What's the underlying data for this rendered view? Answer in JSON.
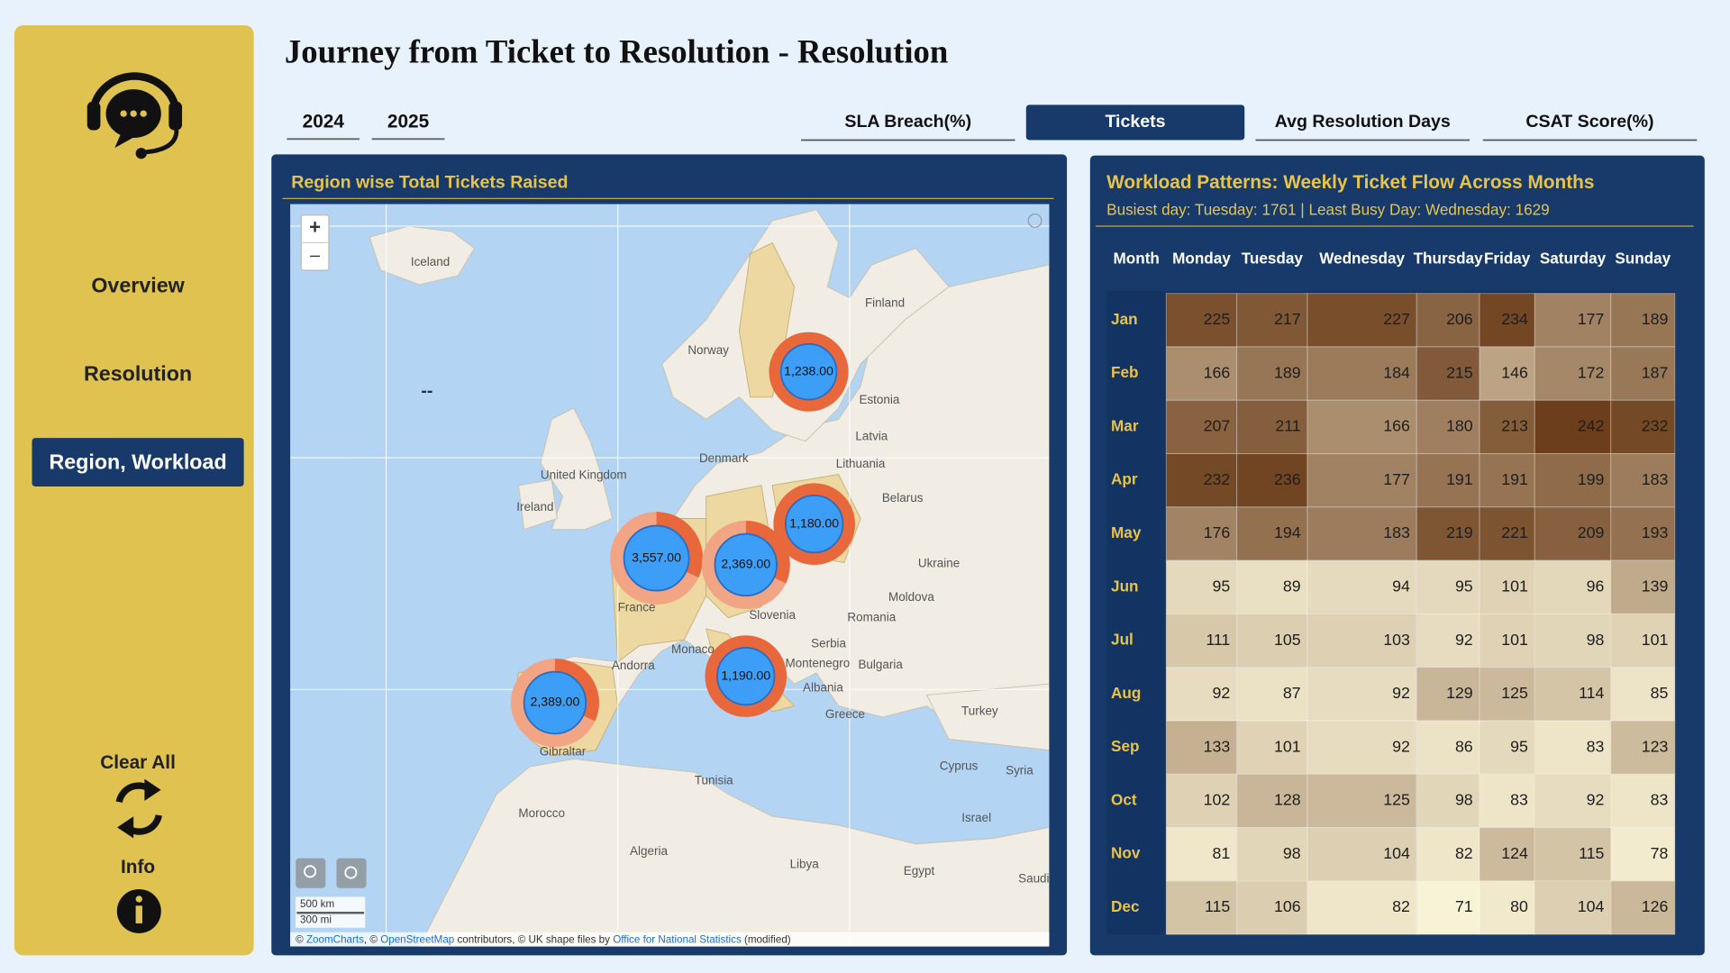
{
  "sidebar": {
    "nav": [
      "Overview",
      "Resolution",
      "Region, Workload"
    ],
    "clear": "Clear All",
    "info": "Info"
  },
  "header": {
    "title": "Journey from Ticket to Resolution - Resolution",
    "years": [
      "2024",
      "2025"
    ],
    "tabs": [
      "SLA Breach(%)",
      "Tickets",
      "Avg Resolution Days",
      "CSAT Score(%)"
    ]
  },
  "map_panel": {
    "title": "Region wise Total Tickets Raised",
    "zoom": [
      "+",
      "–"
    ],
    "bubbles": [
      "1,238.00",
      "3,557.00",
      "2,369.00",
      "1,180.00",
      "1,190.00",
      "2,389.00"
    ],
    "places": [
      "Iceland",
      "Finland",
      "Norway",
      "Estonia",
      "Latvia",
      "Denmark",
      "Lithuania",
      "United Kingdom",
      "Belarus",
      "Ireland",
      "Ukraine",
      "Moldova",
      "France",
      "Slovenia",
      "Romania",
      "Serbia",
      "Monaco",
      "Andorra",
      "Bulgaria",
      "Montenegro",
      "Albania",
      "Turkey",
      "Greece",
      "Gibraltar",
      "Cyprus",
      "Syria",
      "Tunisia",
      "Morocco",
      "Israel",
      "Algeria",
      "Libya",
      "Egypt",
      "Saudi"
    ],
    "dash": "--",
    "scale": [
      "500 km",
      "300 mi"
    ],
    "attribution": [
      "© ",
      "ZoomCharts",
      ", © ",
      "OpenStreetMap",
      " contributors, © UK shape files by ",
      "Office for National Statistics",
      " (modified)"
    ]
  },
  "heatmap": {
    "title": "Workload Patterns: Weekly Ticket Flow Across Months",
    "subtitle": "Busiest day: Tuesday: 1761 | Least Busy Day: Wednesday: 1629",
    "columns": [
      "Month",
      "Monday",
      "Tuesday",
      "Wednesday",
      "Thursday",
      "Friday",
      "Saturday",
      "Sunday"
    ],
    "rows": [
      {
        "month": "Jan",
        "values": [
          225,
          217,
          227,
          206,
          234,
          177,
          189
        ]
      },
      {
        "month": "Feb",
        "values": [
          166,
          189,
          184,
          215,
          146,
          172,
          187
        ]
      },
      {
        "month": "Mar",
        "values": [
          207,
          211,
          166,
          180,
          213,
          242,
          232
        ]
      },
      {
        "month": "Apr",
        "values": [
          232,
          236,
          177,
          191,
          191,
          199,
          183
        ]
      },
      {
        "month": "May",
        "values": [
          176,
          194,
          183,
          219,
          221,
          209,
          193
        ]
      },
      {
        "month": "Jun",
        "values": [
          95,
          89,
          94,
          95,
          101,
          96,
          139
        ]
      },
      {
        "month": "Jul",
        "values": [
          111,
          105,
          103,
          92,
          101,
          98,
          101
        ]
      },
      {
        "month": "Aug",
        "values": [
          92,
          87,
          92,
          129,
          125,
          114,
          85
        ]
      },
      {
        "month": "Sep",
        "values": [
          133,
          101,
          92,
          86,
          95,
          83,
          123
        ]
      },
      {
        "month": "Oct",
        "values": [
          102,
          128,
          125,
          98,
          83,
          92,
          83
        ]
      },
      {
        "month": "Nov",
        "values": [
          81,
          98,
          104,
          82,
          124,
          115,
          78
        ]
      },
      {
        "month": "Dec",
        "values": [
          115,
          106,
          82,
          71,
          80,
          104,
          126
        ]
      }
    ]
  }
}
